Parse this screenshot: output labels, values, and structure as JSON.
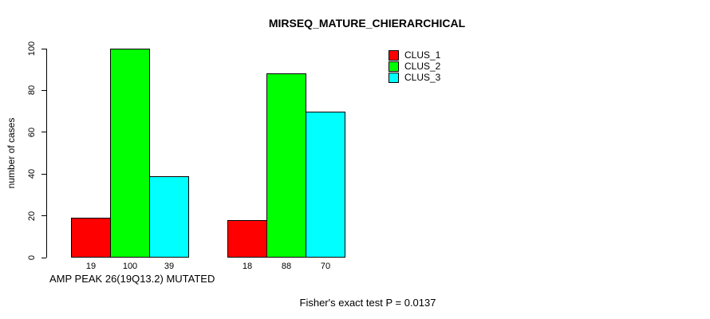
{
  "chart_data": {
    "type": "bar",
    "title": "MIRSEQ_MATURE_CHIERARCHICAL",
    "ylabel": "number of cases",
    "xlabel": "AMP PEAK 26(19Q13.2) MUTATED",
    "annotation": "Fisher's exact test P = 0.0137",
    "ylim": [
      0,
      100
    ],
    "yticks": [
      0,
      20,
      40,
      60,
      80,
      100
    ],
    "grid": false,
    "legend_position": "top-right-outside",
    "bar_border_color": "#000000",
    "categories": [
      "AMP PEAK 26(19Q13.2) MUTATED",
      ""
    ],
    "series": [
      {
        "name": "CLUS_1",
        "color": "#ff0000",
        "values": [
          19,
          18
        ]
      },
      {
        "name": "CLUS_2",
        "color": "#00ff00",
        "values": [
          100,
          88
        ]
      },
      {
        "name": "CLUS_3",
        "color": "#00ffff",
        "values": [
          39,
          70
        ]
      }
    ],
    "value_labels": [
      [
        19,
        100,
        39
      ],
      [
        18,
        88,
        70
      ]
    ]
  }
}
